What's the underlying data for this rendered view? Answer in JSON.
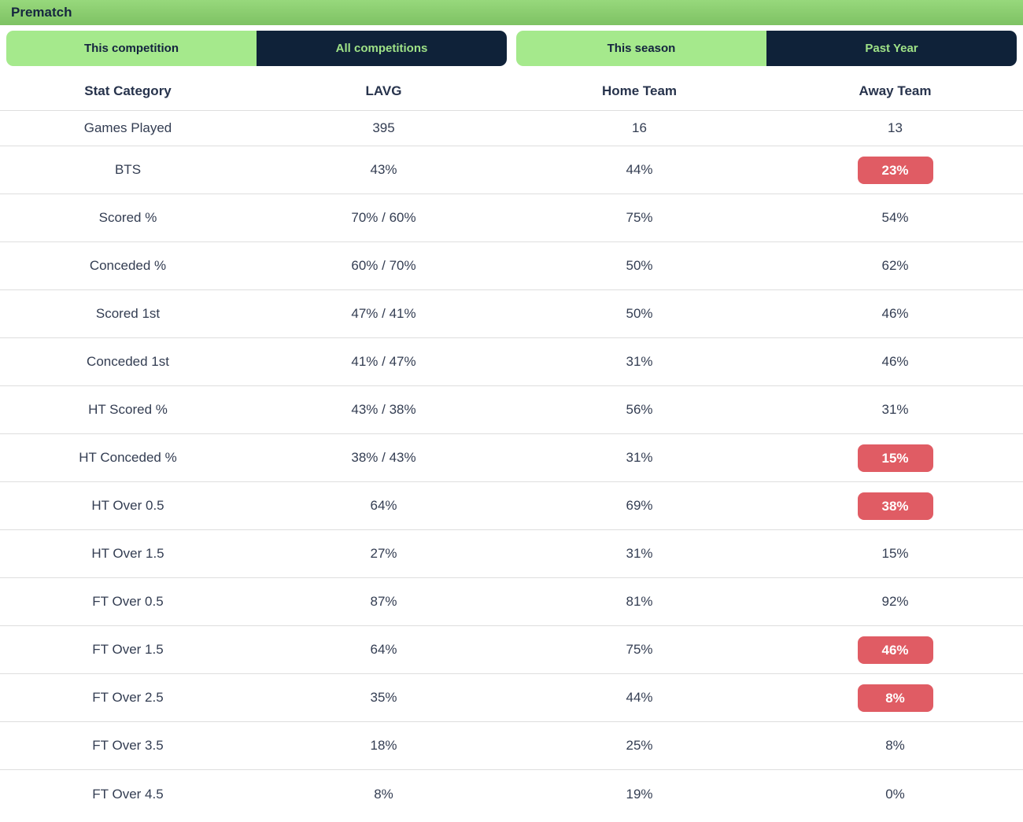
{
  "header": {
    "title": "Prematch"
  },
  "toggles": {
    "competition": {
      "options": [
        {
          "label": "This competition",
          "active": true
        },
        {
          "label": "All competitions",
          "active": false
        }
      ]
    },
    "season": {
      "options": [
        {
          "label": "This season",
          "active": true
        },
        {
          "label": "Past Year",
          "active": false
        }
      ]
    }
  },
  "table": {
    "columns": [
      "Stat Category",
      "LAVG",
      "Home Team",
      "Away Team"
    ],
    "rows": [
      {
        "category": "Games Played",
        "lavg": "395",
        "home": "16",
        "away": "13",
        "away_badge": false
      },
      {
        "category": "BTS",
        "lavg": "43%",
        "home": "44%",
        "away": "23%",
        "away_badge": true
      },
      {
        "category": "Scored %",
        "lavg": "70% / 60%",
        "home": "75%",
        "away": "54%",
        "away_badge": false
      },
      {
        "category": "Conceded %",
        "lavg": "60% / 70%",
        "home": "50%",
        "away": "62%",
        "away_badge": false
      },
      {
        "category": "Scored 1st",
        "lavg": "47% / 41%",
        "home": "50%",
        "away": "46%",
        "away_badge": false
      },
      {
        "category": "Conceded 1st",
        "lavg": "41% / 47%",
        "home": "31%",
        "away": "46%",
        "away_badge": false
      },
      {
        "category": "HT Scored %",
        "lavg": "43% / 38%",
        "home": "56%",
        "away": "31%",
        "away_badge": false
      },
      {
        "category": "HT Conceded %",
        "lavg": "38% / 43%",
        "home": "31%",
        "away": "15%",
        "away_badge": true
      },
      {
        "category": "HT Over 0.5",
        "lavg": "64%",
        "home": "69%",
        "away": "38%",
        "away_badge": true
      },
      {
        "category": "HT Over 1.5",
        "lavg": "27%",
        "home": "31%",
        "away": "15%",
        "away_badge": false
      },
      {
        "category": "FT Over 0.5",
        "lavg": "87%",
        "home": "81%",
        "away": "92%",
        "away_badge": false
      },
      {
        "category": "FT Over 1.5",
        "lavg": "64%",
        "home": "75%",
        "away": "46%",
        "away_badge": true
      },
      {
        "category": "FT Over 2.5",
        "lavg": "35%",
        "home": "44%",
        "away": "8%",
        "away_badge": true
      },
      {
        "category": "FT Over 3.5",
        "lavg": "18%",
        "home": "25%",
        "away": "8%",
        "away_badge": false
      },
      {
        "category": "FT Over 4.5",
        "lavg": "8%",
        "home": "19%",
        "away": "0%",
        "away_badge": false
      }
    ]
  },
  "colors": {
    "header_green_top": "#97d87c",
    "header_green_bottom": "#7ec263",
    "accent_green": "#a5e98c",
    "dark_navy": "#0f2239",
    "table_text": "#333d52",
    "divider": "#dedede",
    "badge_red": "#e05c64"
  }
}
